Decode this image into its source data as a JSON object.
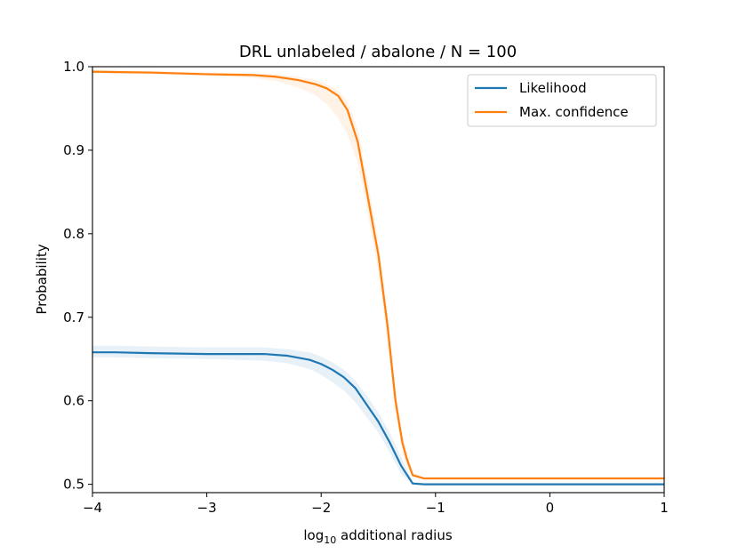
{
  "chart_data": {
    "type": "line",
    "title": "DRL unlabeled / abalone / N = 100",
    "xlabel_prefix": "log",
    "xlabel_sub": "10",
    "xlabel_suffix": " additional radius",
    "ylabel": "Probability",
    "xlim": [
      -4,
      1
    ],
    "ylim": [
      0.49,
      1.0
    ],
    "xticks": [
      -4,
      -3,
      -2,
      -1,
      0,
      1
    ],
    "xtick_labels": [
      "−4",
      "−3",
      "−2",
      "−1",
      "0",
      "1"
    ],
    "yticks": [
      0.5,
      0.6,
      0.7,
      0.8,
      0.9,
      1.0
    ],
    "ytick_labels": [
      "0.5",
      "0.6",
      "0.7",
      "0.8",
      "0.9",
      "1.0"
    ],
    "legend_position": "top-right",
    "series": [
      {
        "name": "Likelihood",
        "color": "#1f77b4",
        "x": [
          -4.0,
          -3.8,
          -3.5,
          -3.0,
          -2.5,
          -2.3,
          -2.1,
          -2.0,
          -1.9,
          -1.8,
          -1.7,
          -1.6,
          -1.5,
          -1.4,
          -1.3,
          -1.2,
          -1.1,
          -1.0,
          0.0,
          1.0
        ],
        "y": [
          0.658,
          0.658,
          0.657,
          0.656,
          0.656,
          0.654,
          0.649,
          0.644,
          0.637,
          0.628,
          0.615,
          0.595,
          0.575,
          0.55,
          0.522,
          0.501,
          0.5,
          0.5,
          0.5,
          0.5
        ],
        "band_low": [
          0.652,
          0.652,
          0.651,
          0.65,
          0.648,
          0.645,
          0.638,
          0.631,
          0.622,
          0.612,
          0.598,
          0.58,
          0.562,
          0.538,
          0.512,
          0.5,
          0.5,
          0.5,
          0.5,
          0.5
        ],
        "band_high": [
          0.666,
          0.666,
          0.665,
          0.664,
          0.664,
          0.662,
          0.658,
          0.653,
          0.646,
          0.637,
          0.624,
          0.606,
          0.586,
          0.562,
          0.532,
          0.503,
          0.5,
          0.5,
          0.5,
          0.5
        ]
      },
      {
        "name": "Max. confidence",
        "color": "#ff7f0e",
        "x": [
          -4.0,
          -3.5,
          -3.0,
          -2.6,
          -2.4,
          -2.2,
          -2.05,
          -1.95,
          -1.85,
          -1.77,
          -1.68,
          -1.6,
          -1.5,
          -1.42,
          -1.35,
          -1.29,
          -1.25,
          -1.2,
          -1.1,
          -1.0,
          0.0,
          1.0
        ],
        "y": [
          0.994,
          0.993,
          0.991,
          0.99,
          0.988,
          0.984,
          0.979,
          0.974,
          0.965,
          0.948,
          0.91,
          0.85,
          0.775,
          0.69,
          0.6,
          0.55,
          0.53,
          0.511,
          0.507,
          0.507,
          0.507,
          0.507
        ],
        "band_low": [
          0.992,
          0.991,
          0.989,
          0.987,
          0.983,
          0.975,
          0.966,
          0.955,
          0.938,
          0.918,
          0.885,
          0.83,
          0.755,
          0.67,
          0.585,
          0.54,
          0.52,
          0.51,
          0.507,
          0.507,
          0.507,
          0.507
        ],
        "band_high": [
          0.996,
          0.995,
          0.993,
          0.992,
          0.991,
          0.988,
          0.984,
          0.979,
          0.972,
          0.958,
          0.925,
          0.868,
          0.792,
          0.708,
          0.615,
          0.558,
          0.538,
          0.513,
          0.508,
          0.507,
          0.507,
          0.507
        ]
      }
    ]
  }
}
